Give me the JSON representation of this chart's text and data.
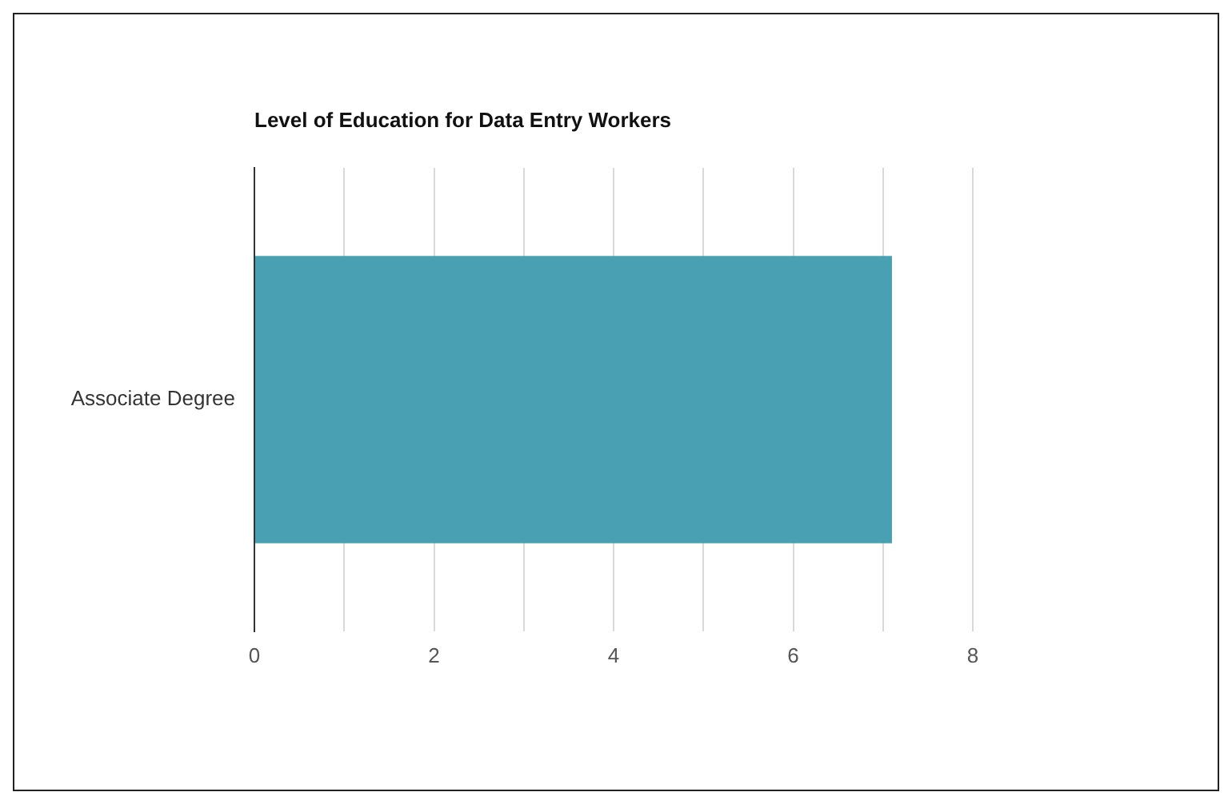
{
  "chart_data": {
    "type": "bar",
    "orientation": "horizontal",
    "title": "Level of Education for Data Entry Workers",
    "categories": [
      "Associate Degree"
    ],
    "values": [
      7.1
    ],
    "color": "#4aa0b3",
    "xlim": [
      0,
      8
    ],
    "xticks": [
      0,
      {
        "value": 1,
        "label": null
      },
      2,
      {
        "value": 3,
        "label": null
      },
      4,
      {
        "value": 5,
        "label": null
      },
      6,
      {
        "value": 7,
        "label": null
      },
      8
    ],
    "grid": "x"
  }
}
